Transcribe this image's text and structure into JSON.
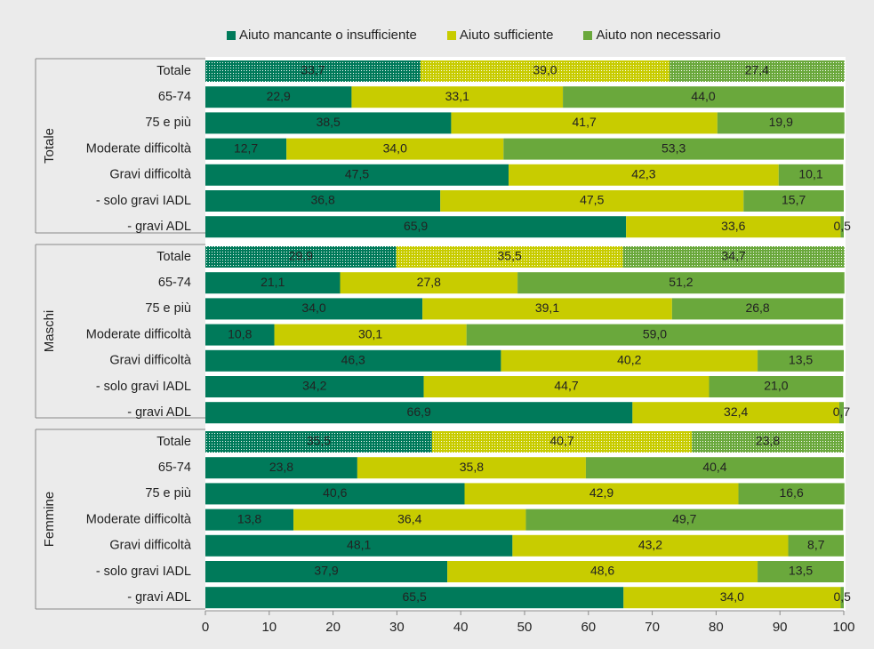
{
  "colors": {
    "background": "#ebebeb",
    "missing": "#007a5a",
    "sufficient": "#c8cc00",
    "not_needed": "#6aa83c"
  },
  "chart_data": {
    "type": "bar",
    "orientation": "horizontal",
    "stacked": true,
    "xlim": [
      0,
      100
    ],
    "xticks": [
      "0",
      "10",
      "20",
      "30",
      "40",
      "50",
      "60",
      "70",
      "80",
      "90",
      "100"
    ],
    "legend_position": "top",
    "series": [
      {
        "name": "Aiuto mancante o insufficiente",
        "color": "#007a5a"
      },
      {
        "name": "Aiuto sufficiente",
        "color": "#c8cc00"
      },
      {
        "name": "Aiuto non necessario",
        "color": "#6aa83c"
      }
    ],
    "groups": [
      {
        "label": "Totale",
        "rows": [
          {
            "label": "Totale",
            "values": [
              33.7,
              39.0,
              27.4
            ],
            "texts": [
              "33,7",
              "39,0",
              "27,4"
            ],
            "dotted": true
          },
          {
            "label": "65-74",
            "values": [
              22.9,
              33.1,
              44.0
            ],
            "texts": [
              "22,9",
              "33,1",
              "44,0"
            ]
          },
          {
            "label": "75 e più",
            "values": [
              38.5,
              41.7,
              19.9
            ],
            "texts": [
              "38,5",
              "41,7",
              "19,9"
            ]
          },
          {
            "label": "Moderate difficoltà",
            "values": [
              12.7,
              34.0,
              53.3
            ],
            "texts": [
              "12,7",
              "34,0",
              "53,3"
            ]
          },
          {
            "label": "Gravi difficoltà",
            "values": [
              47.5,
              42.3,
              10.1
            ],
            "texts": [
              "47,5",
              "42,3",
              "10,1"
            ]
          },
          {
            "label": "- solo gravi IADL",
            "values": [
              36.8,
              47.5,
              15.7
            ],
            "texts": [
              "36,8",
              "47,5",
              "15,7"
            ]
          },
          {
            "label": "- gravi ADL",
            "values": [
              65.9,
              33.6,
              0.5
            ],
            "texts": [
              "65,9",
              "33,6",
              "0,5"
            ]
          }
        ]
      },
      {
        "label": "Maschi",
        "rows": [
          {
            "label": "Totale",
            "values": [
              29.9,
              35.5,
              34.7
            ],
            "texts": [
              "29,9",
              "35,5",
              "34,7"
            ],
            "dotted": true
          },
          {
            "label": "65-74",
            "values": [
              21.1,
              27.8,
              51.2
            ],
            "texts": [
              "21,1",
              "27,8",
              "51,2"
            ]
          },
          {
            "label": "75 e più",
            "values": [
              34.0,
              39.1,
              26.8
            ],
            "texts": [
              "34,0",
              "39,1",
              "26,8"
            ]
          },
          {
            "label": "Moderate difficoltà",
            "values": [
              10.8,
              30.1,
              59.0
            ],
            "texts": [
              "10,8",
              "30,1",
              "59,0"
            ]
          },
          {
            "label": "Gravi difficoltà",
            "values": [
              46.3,
              40.2,
              13.5
            ],
            "texts": [
              "46,3",
              "40,2",
              "13,5"
            ]
          },
          {
            "label": "- solo gravi IADL",
            "values": [
              34.2,
              44.7,
              21.0
            ],
            "texts": [
              "34,2",
              "44,7",
              "21,0"
            ]
          },
          {
            "label": "- gravi ADL",
            "values": [
              66.9,
              32.4,
              0.7
            ],
            "texts": [
              "66,9",
              "32,4",
              "0,7"
            ]
          }
        ]
      },
      {
        "label": "Femmine",
        "rows": [
          {
            "label": "Totale",
            "values": [
              35.5,
              40.7,
              23.8
            ],
            "texts": [
              "35,5",
              "40,7",
              "23,8"
            ],
            "dotted": true
          },
          {
            "label": "65-74",
            "values": [
              23.8,
              35.8,
              40.4
            ],
            "texts": [
              "23,8",
              "35,8",
              "40,4"
            ]
          },
          {
            "label": "75 e più",
            "values": [
              40.6,
              42.9,
              16.6
            ],
            "texts": [
              "40,6",
              "42,9",
              "16,6"
            ]
          },
          {
            "label": "Moderate difficoltà",
            "values": [
              13.8,
              36.4,
              49.7
            ],
            "texts": [
              "13,8",
              "36,4",
              "49,7"
            ]
          },
          {
            "label": "Gravi difficoltà",
            "values": [
              48.1,
              43.2,
              8.7
            ],
            "texts": [
              "48,1",
              "43,2",
              "8,7"
            ]
          },
          {
            "label": "- solo gravi IADL",
            "values": [
              37.9,
              48.6,
              13.5
            ],
            "texts": [
              "37,9",
              "48,6",
              "13,5"
            ]
          },
          {
            "label": "- gravi ADL",
            "values": [
              65.5,
              34.0,
              0.5
            ],
            "texts": [
              "65,5",
              "34,0",
              "0,5"
            ]
          }
        ]
      }
    ]
  }
}
